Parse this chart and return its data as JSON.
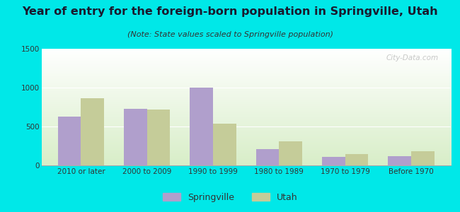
{
  "title": "Year of entry for the foreign-born population in Springville, Utah",
  "subtitle": "(Note: State values scaled to Springville population)",
  "categories": [
    "2010 or later",
    "2000 to 2009",
    "1990 to 1999",
    "1980 to 1989",
    "1970 to 1979",
    "Before 1970"
  ],
  "springville_values": [
    625,
    725,
    1000,
    210,
    110,
    115
  ],
  "utah_values": [
    860,
    715,
    535,
    310,
    150,
    185
  ],
  "springville_color": "#b09fcc",
  "utah_color": "#c5cc99",
  "background_outer": "#00e8e8",
  "background_plot_top": "#ffffff",
  "background_plot_bottom": "#d8eec8",
  "ylim": [
    0,
    1500
  ],
  "yticks": [
    0,
    500,
    1000,
    1500
  ],
  "bar_width": 0.35,
  "title_fontsize": 11.5,
  "subtitle_fontsize": 8,
  "tick_fontsize": 7.5,
  "legend_fontsize": 9
}
